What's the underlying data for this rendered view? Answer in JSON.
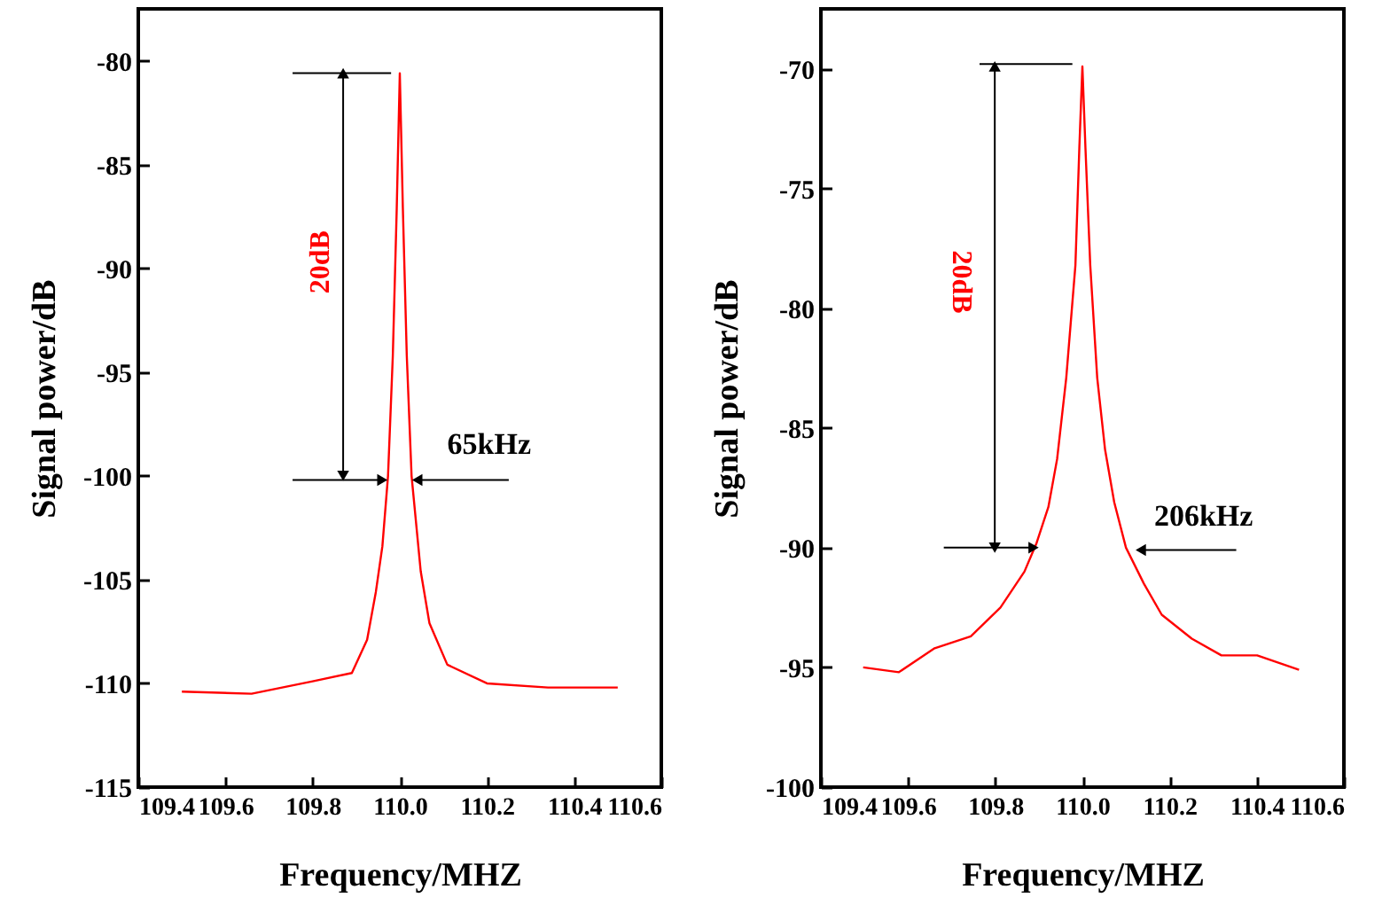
{
  "chart_data": [
    {
      "type": "line",
      "xlabel": "Frequency/MHZ",
      "ylabel": "Signal power/dB",
      "xlim": [
        109.4,
        110.6
      ],
      "ylim": [
        -115,
        -77.5
      ],
      "xticks": [
        109.4,
        109.6,
        109.8,
        {
          "value": 110,
          "label": "110.0"
        },
        110.2,
        110.4,
        110.6
      ],
      "yticks": [
        -115,
        -110,
        -105,
        -100,
        -95,
        -90,
        -85,
        -80
      ],
      "series": [
        {
          "color": "#ff0000",
          "x": [
            109.5,
            109.66,
            109.8,
            109.89,
            109.925,
            109.945,
            109.96,
            109.973,
            109.984,
            109.993,
            110.0,
            110.007,
            110.016,
            110.027,
            110.048,
            110.068,
            110.109,
            110.2,
            110.34,
            110.5
          ],
          "values": [
            -110.4,
            -110.5,
            -109.9,
            -109.5,
            -107.9,
            -105.6,
            -103.4,
            -100,
            -94.2,
            -87.1,
            -80.6,
            -87.1,
            -94.2,
            -100,
            -104.6,
            -107.1,
            -109.1,
            -110,
            -110.2,
            -110.2
          ]
        }
      ],
      "annotations": [
        "20dB",
        "65kHz"
      ]
    },
    {
      "type": "line",
      "xlabel": "Frequency/MHZ",
      "ylabel": "Signal power/dB",
      "xlim": [
        109.4,
        110.6
      ],
      "ylim": [
        -100,
        -67.5
      ],
      "xticks": [
        109.4,
        109.6,
        109.8,
        {
          "value": 110,
          "label": "110.0"
        },
        110.2,
        110.4,
        110.6
      ],
      "yticks": [
        -100,
        -95,
        -90,
        -85,
        -80,
        -75,
        -70
      ],
      "series": [
        {
          "color": "#ff0000",
          "x": [
            109.497,
            109.579,
            109.661,
            109.744,
            109.812,
            109.867,
            109.895,
            109.922,
            109.942,
            109.963,
            109.984,
            109.993,
            110.0,
            110.007,
            110.018,
            110.034,
            110.052,
            110.073,
            110.1,
            110.141,
            110.182,
            110.251,
            110.319,
            110.401,
            110.497
          ],
          "values": [
            -95.0,
            -95.2,
            -94.2,
            -93.7,
            -92.5,
            -91.0,
            -89.8,
            -88.3,
            -86.3,
            -82.9,
            -78.2,
            -73.3,
            -69.9,
            -73.3,
            -78.2,
            -82.9,
            -85.9,
            -88.1,
            -90.0,
            -91.5,
            -92.8,
            -93.8,
            -94.5,
            -94.5,
            -95.1
          ]
        }
      ],
      "annotations": [
        "20dB",
        "206kHz"
      ]
    }
  ]
}
